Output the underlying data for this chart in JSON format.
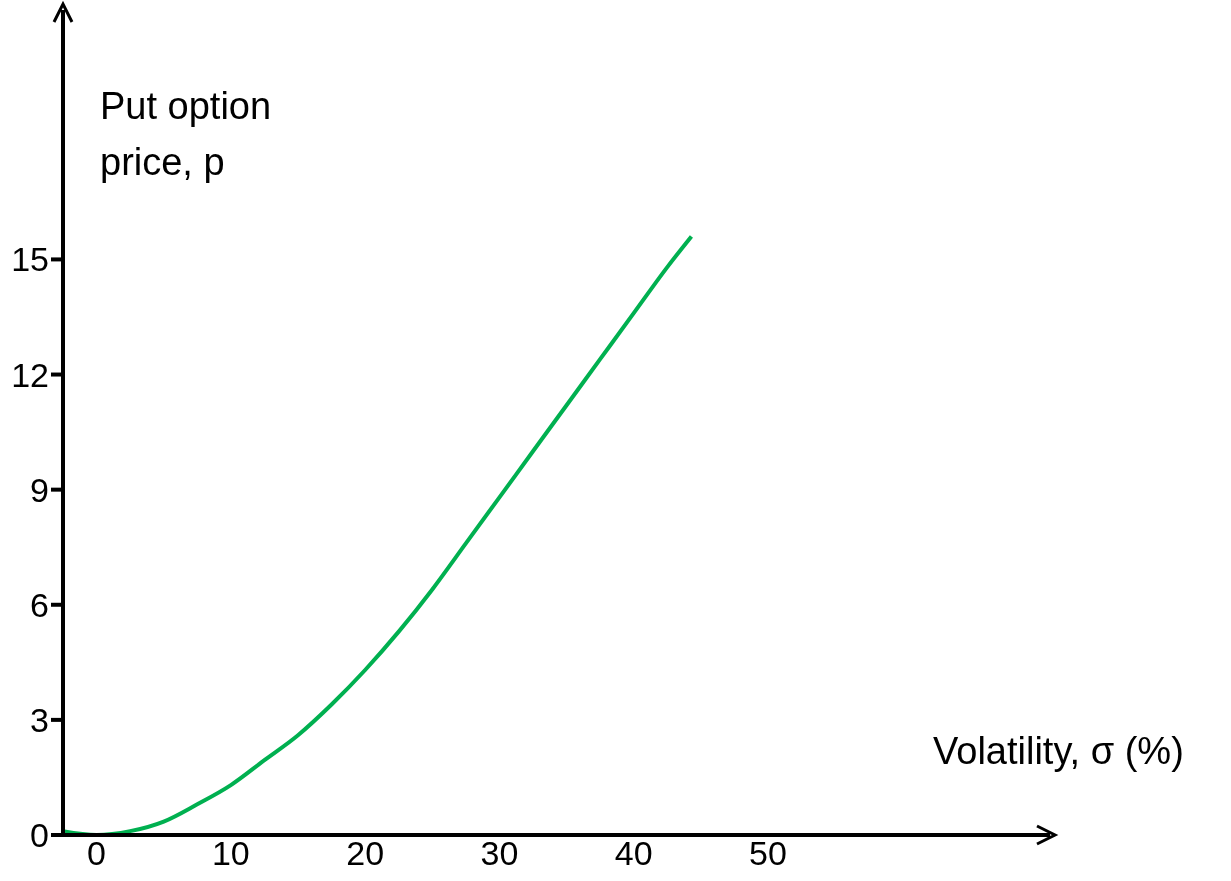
{
  "chart_data": {
    "type": "line",
    "xlabel": "Volatility, σ (%)",
    "ylabel": "Put  option price, p",
    "x": [
      -2.5,
      0,
      2.5,
      5,
      7.5,
      10,
      12.5,
      15,
      17.5,
      20,
      22.5,
      25,
      27.5,
      30,
      32.5,
      35,
      37.5,
      40,
      42.5,
      44.3
    ],
    "series": [
      {
        "color": "#00b050",
        "values": [
          0.1,
          0,
          0.1,
          0.35,
          0.8,
          1.3,
          1.95,
          2.6,
          3.4,
          4.3,
          5.3,
          6.4,
          7.6,
          8.8,
          10,
          11.2,
          12.4,
          13.6,
          14.8,
          15.6
        ]
      }
    ],
    "xlim": [
      -2.5,
      71
    ],
    "xticks": [
      0,
      10,
      20,
      30,
      40,
      50
    ],
    "ylim": [
      0,
      21.5
    ],
    "yticks": [
      0,
      3,
      6,
      9,
      12,
      15
    ],
    "marker": "none",
    "line_style": "solid"
  }
}
